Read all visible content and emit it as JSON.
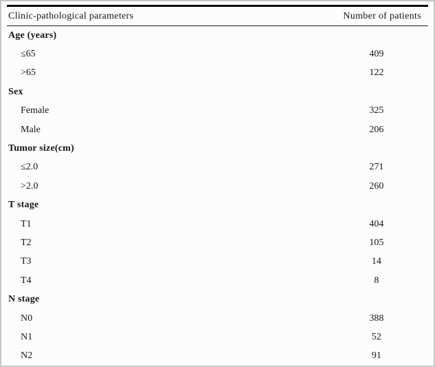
{
  "table": {
    "header": {
      "param_label": "Clinic-pathological parameters",
      "value_label": "Number of patients"
    },
    "rows": [
      {
        "type": "category",
        "label": "Age (years)",
        "value": ""
      },
      {
        "type": "item",
        "label": "≤65",
        "value": "409"
      },
      {
        "type": "item",
        "label": ">65",
        "value": "122"
      },
      {
        "type": "category",
        "label": "Sex",
        "value": ""
      },
      {
        "type": "item",
        "label": "Female",
        "value": "325"
      },
      {
        "type": "item",
        "label": "Male",
        "value": "206"
      },
      {
        "type": "category",
        "label": "Tumor size(cm)",
        "value": ""
      },
      {
        "type": "item",
        "label": "≤2.0",
        "value": "271"
      },
      {
        "type": "item",
        "label": ">2.0",
        "value": "260"
      },
      {
        "type": "category",
        "label": "T stage",
        "value": ""
      },
      {
        "type": "item",
        "label": "T1",
        "value": "404"
      },
      {
        "type": "item",
        "label": "T2",
        "value": "105"
      },
      {
        "type": "item",
        "label": "T3",
        "value": "14"
      },
      {
        "type": "item",
        "label": "T4",
        "value": "8"
      },
      {
        "type": "category",
        "label": "N stage",
        "value": ""
      },
      {
        "type": "item",
        "label": "N0",
        "value": "388"
      },
      {
        "type": "item",
        "label": "N1",
        "value": "52"
      },
      {
        "type": "item",
        "label": "N2",
        "value": "91"
      }
    ],
    "colors": {
      "text": "#161616",
      "rule": "#0a0a0a",
      "frame": "#c6c6c6",
      "background": "#fcfcfc"
    }
  }
}
